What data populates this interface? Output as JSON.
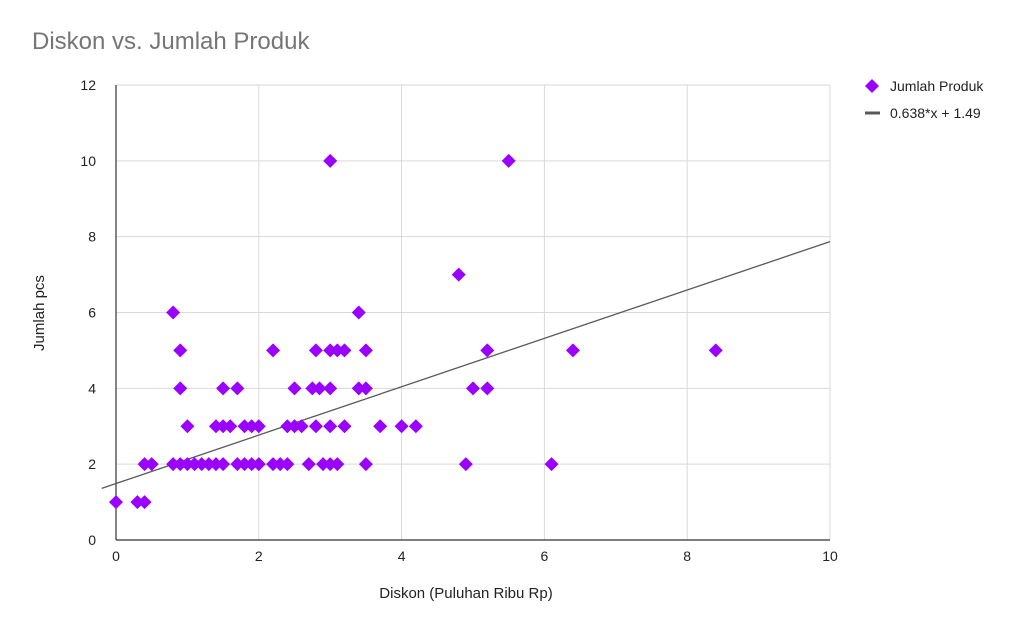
{
  "chart_data": {
    "type": "scatter",
    "title": "Diskon vs. Jumlah Produk",
    "xlabel": "Diskon (Puluhan Ribu Rp)",
    "ylabel": "Jumlah pcs",
    "xlim": [
      0,
      10
    ],
    "ylim": [
      0,
      12
    ],
    "xticks": [
      "0",
      "2",
      "4",
      "6",
      "8",
      "10"
    ],
    "yticks": [
      "0",
      "2",
      "4",
      "6",
      "8",
      "10",
      "12"
    ],
    "grid": true,
    "legend_position": "top-right",
    "colors": {
      "series": "#9900ff",
      "trendline": "#595959"
    },
    "series": [
      {
        "name": "Jumlah Produk",
        "points": [
          [
            0,
            1
          ],
          [
            0.3,
            1
          ],
          [
            0.4,
            1
          ],
          [
            0.4,
            2
          ],
          [
            0.5,
            2
          ],
          [
            0.8,
            2
          ],
          [
            0.9,
            2
          ],
          [
            1.0,
            2
          ],
          [
            1.1,
            2
          ],
          [
            1.2,
            2
          ],
          [
            1.3,
            2
          ],
          [
            1.4,
            2
          ],
          [
            1.5,
            2
          ],
          [
            1.7,
            2
          ],
          [
            1.8,
            2
          ],
          [
            1.9,
            2
          ],
          [
            2.0,
            2
          ],
          [
            2.2,
            2
          ],
          [
            2.3,
            2
          ],
          [
            2.4,
            2
          ],
          [
            2.7,
            2
          ],
          [
            2.9,
            2
          ],
          [
            3.0,
            2
          ],
          [
            3.1,
            2
          ],
          [
            3.5,
            2
          ],
          [
            4.9,
            2
          ],
          [
            6.1,
            2
          ],
          [
            1.0,
            3
          ],
          [
            1.4,
            3
          ],
          [
            1.5,
            3
          ],
          [
            1.6,
            3
          ],
          [
            1.8,
            3
          ],
          [
            1.9,
            3
          ],
          [
            2.0,
            3
          ],
          [
            2.4,
            3
          ],
          [
            2.5,
            3
          ],
          [
            2.6,
            3
          ],
          [
            2.8,
            3
          ],
          [
            3.0,
            3
          ],
          [
            3.2,
            3
          ],
          [
            3.7,
            3
          ],
          [
            4.0,
            3
          ],
          [
            4.2,
            3
          ],
          [
            0.9,
            4
          ],
          [
            1.5,
            4
          ],
          [
            1.7,
            4
          ],
          [
            2.5,
            4
          ],
          [
            2.75,
            4
          ],
          [
            2.85,
            4
          ],
          [
            3.0,
            4
          ],
          [
            3.4,
            4
          ],
          [
            3.5,
            4
          ],
          [
            5.0,
            4
          ],
          [
            5.2,
            4
          ],
          [
            0.9,
            5
          ],
          [
            2.2,
            5
          ],
          [
            2.8,
            5
          ],
          [
            3.0,
            5
          ],
          [
            3.1,
            5
          ],
          [
            3.2,
            5
          ],
          [
            3.5,
            5
          ],
          [
            5.2,
            5
          ],
          [
            6.4,
            5
          ],
          [
            8.4,
            5
          ],
          [
            0.8,
            6
          ],
          [
            3.4,
            6
          ],
          [
            4.8,
            7
          ],
          [
            3.0,
            10
          ],
          [
            5.5,
            10
          ]
        ]
      }
    ],
    "trendline": {
      "label": "0.638*x + 1.49",
      "slope": 0.638,
      "intercept": 1.49
    }
  }
}
